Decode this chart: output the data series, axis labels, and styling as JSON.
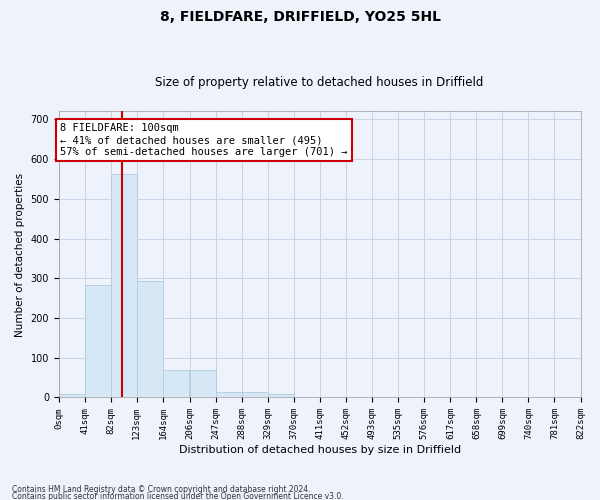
{
  "title1": "8, FIELDFARE, DRIFFIELD, YO25 5HL",
  "title2": "Size of property relative to detached houses in Driffield",
  "xlabel": "Distribution of detached houses by size in Driffield",
  "ylabel": "Number of detached properties",
  "footer1": "Contains HM Land Registry data © Crown copyright and database right 2024.",
  "footer2": "Contains public sector information licensed under the Open Government Licence v3.0.",
  "bin_edges": [
    0,
    41,
    82,
    123,
    164,
    206,
    247,
    288,
    329,
    370,
    411,
    452,
    493,
    535,
    576,
    617,
    658,
    699,
    740,
    781,
    822
  ],
  "bar_heights": [
    8,
    283,
    563,
    292,
    68,
    68,
    15,
    15,
    10,
    0,
    0,
    0,
    0,
    0,
    0,
    0,
    0,
    0,
    0,
    0
  ],
  "bar_color": "#d6e8f5",
  "bar_edge_color": "#b0ccdf",
  "grid_color": "#c8d4e8",
  "property_sqm": 100,
  "vline_color": "#cc0000",
  "annotation_line1": "8 FIELDFARE: 100sqm",
  "annotation_line2": "← 41% of detached houses are smaller (495)",
  "annotation_line3": "57% of semi-detached houses are larger (701) →",
  "annotation_box_color": "#cc0000",
  "ylim": [
    0,
    720
  ],
  "yticks": [
    0,
    100,
    200,
    300,
    400,
    500,
    600,
    700
  ],
  "background_color": "#eef2fa",
  "plot_bg_color": "#eef2fa",
  "title1_fontsize": 10,
  "title2_fontsize": 8.5,
  "xlabel_fontsize": 8,
  "ylabel_fontsize": 7.5,
  "tick_fontsize": 6.5,
  "annotation_fontsize": 7.5
}
